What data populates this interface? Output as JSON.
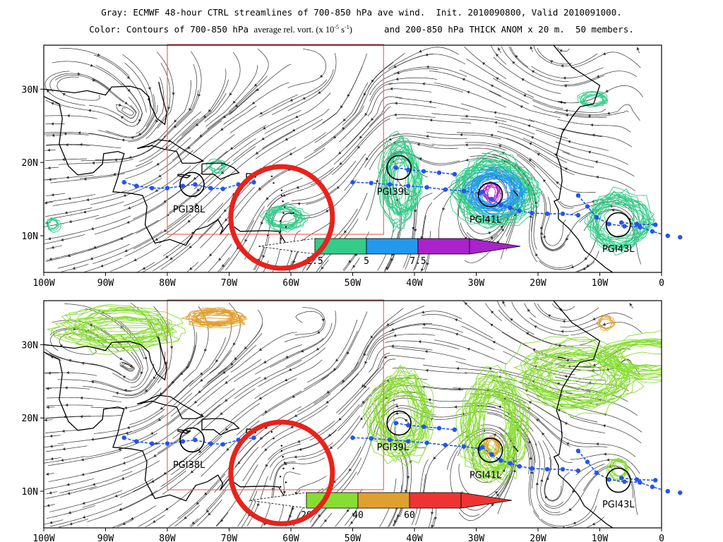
{
  "header": {
    "line1": "Gray: ECMWF 48-hour CTRL streamlines of 700-850 hPa ave wind.  Init. 2010090800, Valid 2010091000.",
    "line2_left": "Color: Contours of 700-850 hPa ",
    "line2_mid": "average rel. vort. (x 10",
    "line2_exp": "-5",
    "line2_mid2": " s",
    "line2_exp2": "-1",
    "line2_mid3": ")",
    "line2_right": "      and 200-850 hPa THICK ANOM x 20 m.  50 members."
  },
  "axes": {
    "lon_labels": [
      "100W",
      "90W",
      "80W",
      "70W",
      "60W",
      "50W",
      "40W",
      "30W",
      "20W",
      "10W",
      "0"
    ],
    "lat_labels": [
      "30N",
      "20N",
      "10N"
    ]
  },
  "storms": [
    {
      "label": "PGI38L"
    },
    {
      "label": "PGI39L"
    },
    {
      "label": "PGI41L"
    },
    {
      "label": "PGI43L"
    }
  ],
  "panels": {
    "top": {
      "colorbar_labels": [
        "2.5",
        "5",
        "7.5"
      ],
      "colorbar_colors": [
        "#33cc88",
        "#2299ee",
        "#aa22cc"
      ]
    },
    "bottom": {
      "colorbar_labels": [
        "20",
        "40",
        "60"
      ],
      "colorbar_colors": [
        "#88dd33",
        "#e0a030",
        "#ee3333"
      ]
    }
  },
  "colors": {
    "streamline": "#333333",
    "coast": "#000000",
    "track": "#2255ee",
    "highlight_circle": "#e8221c",
    "domain_box": "#ee6666"
  }
}
